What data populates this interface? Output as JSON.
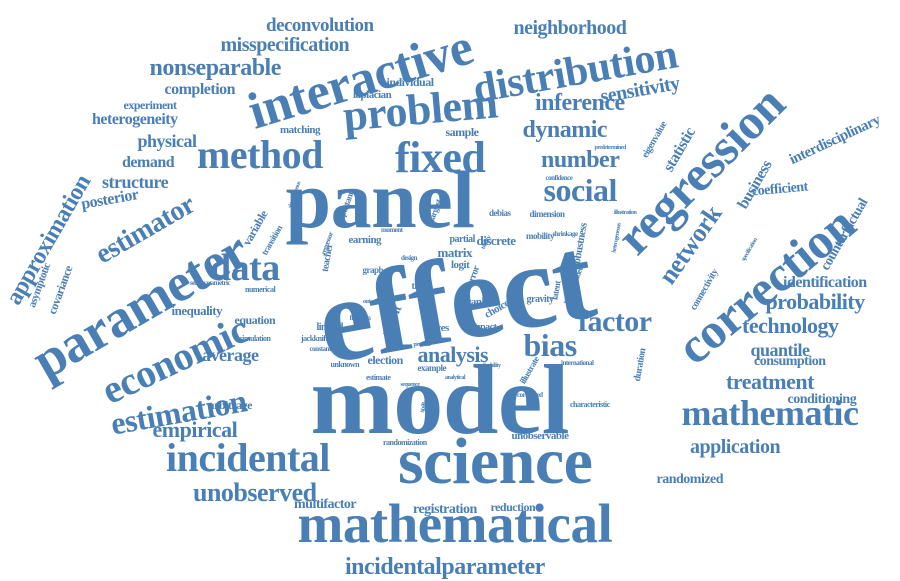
{
  "cloud": {
    "color": "#4a7fb5",
    "words": [
      "effect",
      "model",
      "science",
      "panel",
      "mathematical",
      "parameter",
      "regression",
      "interactive",
      "correction",
      "distribution",
      "problem",
      "fixed",
      "method",
      "economic",
      "incidental",
      "data",
      "mathematic",
      "estimation",
      "social",
      "bias",
      "estimator",
      "approximation",
      "factor",
      "network",
      "nonseparable",
      "unobserved",
      "dynamic",
      "number",
      "inference",
      "analysis",
      "treatment",
      "empirical",
      "application",
      "probability",
      "technology",
      "misspecification",
      "incidentalparameter",
      "neighborhood",
      "deconvolution",
      "sensitivity",
      "structure",
      "heterogeneity",
      "completion",
      "physical",
      "demand",
      "posterior",
      "average",
      "interdisciplinary",
      "quantile",
      "statistic",
      "business",
      "coefficient",
      "counterfactual",
      "identification",
      "consumption",
      "conditioning",
      "randomized",
      "registration",
      "multifactor",
      "reduction",
      "inequality",
      "experiment",
      "matching",
      "covariance",
      "asymptotic",
      "arbitrage",
      "variable",
      "equation",
      "matrix",
      "discrete",
      "logit",
      "probit",
      "election",
      "sample",
      "individual",
      "laplacian",
      "eigenvalue",
      "robustness",
      "duration",
      "unobservable",
      "randomization",
      "characteristic",
      "connectivity",
      "gravity",
      "mobility",
      "dimension",
      "latent",
      "debias",
      "partial",
      "earning",
      "teacher",
      "transition",
      "simulation",
      "jackknife",
      "limited",
      "numerical",
      "semiparametric",
      "graph",
      "time",
      "rank",
      "error",
      "choice",
      "bayes",
      "linear",
      "impact",
      "example",
      "estimate",
      "unknown",
      "international",
      "illustrate",
      "shrinkage",
      "confidence",
      "predetermined",
      "specification",
      "correlated",
      "spillover",
      "applicability",
      "product",
      "outcome",
      "largest",
      "important",
      "regressor",
      "moment",
      "design",
      "utility",
      "added",
      "value",
      "constant",
      "function",
      "sequence",
      "simultaneous",
      "illustration",
      "heterogeneous",
      "analytical"
    ]
  }
}
